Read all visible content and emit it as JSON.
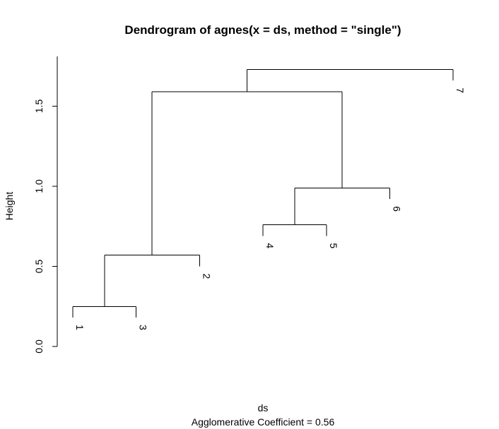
{
  "chart_data": {
    "type": "dendrogram",
    "title": "Dendrogram of  agnes(x = ds, method = \"single\")",
    "xlabel": "ds",
    "sublabel": "Agglomerative Coefficient =  0.56",
    "ylabel": "Height",
    "ylim": [
      0,
      1.75
    ],
    "yticks": [
      0.0,
      0.5,
      1.0,
      1.5
    ],
    "ytick_labels": [
      "0.0",
      "0.5",
      "1.0",
      "1.5"
    ],
    "leaves": [
      "1",
      "3",
      "2",
      "4",
      "5",
      "6",
      "7"
    ],
    "merges": [
      {
        "a": "1",
        "b": "3",
        "height": 0.25
      },
      {
        "a": "(1,3)",
        "b": "2",
        "height": 0.57
      },
      {
        "a": "4",
        "b": "5",
        "height": 0.76
      },
      {
        "a": "(4,5)",
        "b": "6",
        "height": 0.99
      },
      {
        "a": "(1,3,2)",
        "b": "(4,5,6)",
        "height": 1.59
      },
      {
        "a": "(1,3,2,4,5,6)",
        "b": "7",
        "height": 1.73
      }
    ]
  }
}
